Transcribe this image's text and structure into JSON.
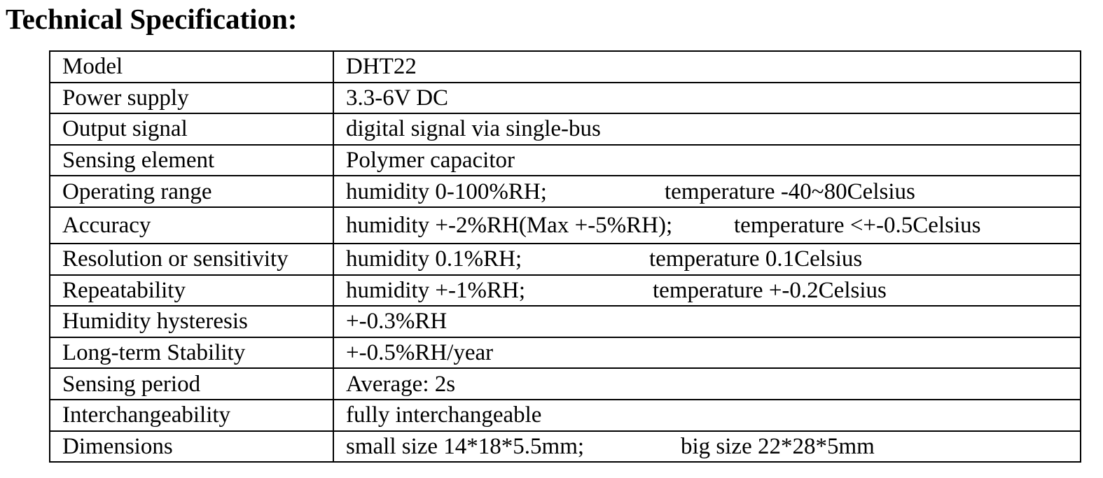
{
  "heading": "Technical Specification:",
  "rows": [
    {
      "label": "Model",
      "value": "DHT22"
    },
    {
      "label": "Power supply",
      "value": "3.3-6V DC"
    },
    {
      "label": "Output signal",
      "value": "digital signal via single-bus"
    },
    {
      "label": "Sensing element",
      "value": "Polymer capacitor"
    },
    {
      "label": "Operating range",
      "humidity": "humidity 0-100%RH;",
      "temperature": "temperature -40~80Celsius"
    },
    {
      "label": "Accuracy",
      "humidity": "humidity +-2%RH(Max +-5%RH);",
      "temperature": "temperature <+-0.5Celsius"
    },
    {
      "label": "Resolution or sensitivity",
      "humidity": "humidity 0.1%RH;",
      "temperature": "temperature 0.1Celsius"
    },
    {
      "label": "Repeatability",
      "humidity": "humidity +-1%RH;",
      "temperature": "temperature +-0.2Celsius"
    },
    {
      "label": "Humidity hysteresis",
      "value": "+-0.3%RH"
    },
    {
      "label": "Long-term Stability",
      "value": "+-0.5%RH/year"
    },
    {
      "label": "Sensing period",
      "value": "Average: 2s"
    },
    {
      "label": "Interchangeability",
      "value": "fully interchangeable"
    },
    {
      "label": "Dimensions",
      "small": "small size 14*18*5.5mm;",
      "big": "big size 22*28*5mm"
    }
  ]
}
